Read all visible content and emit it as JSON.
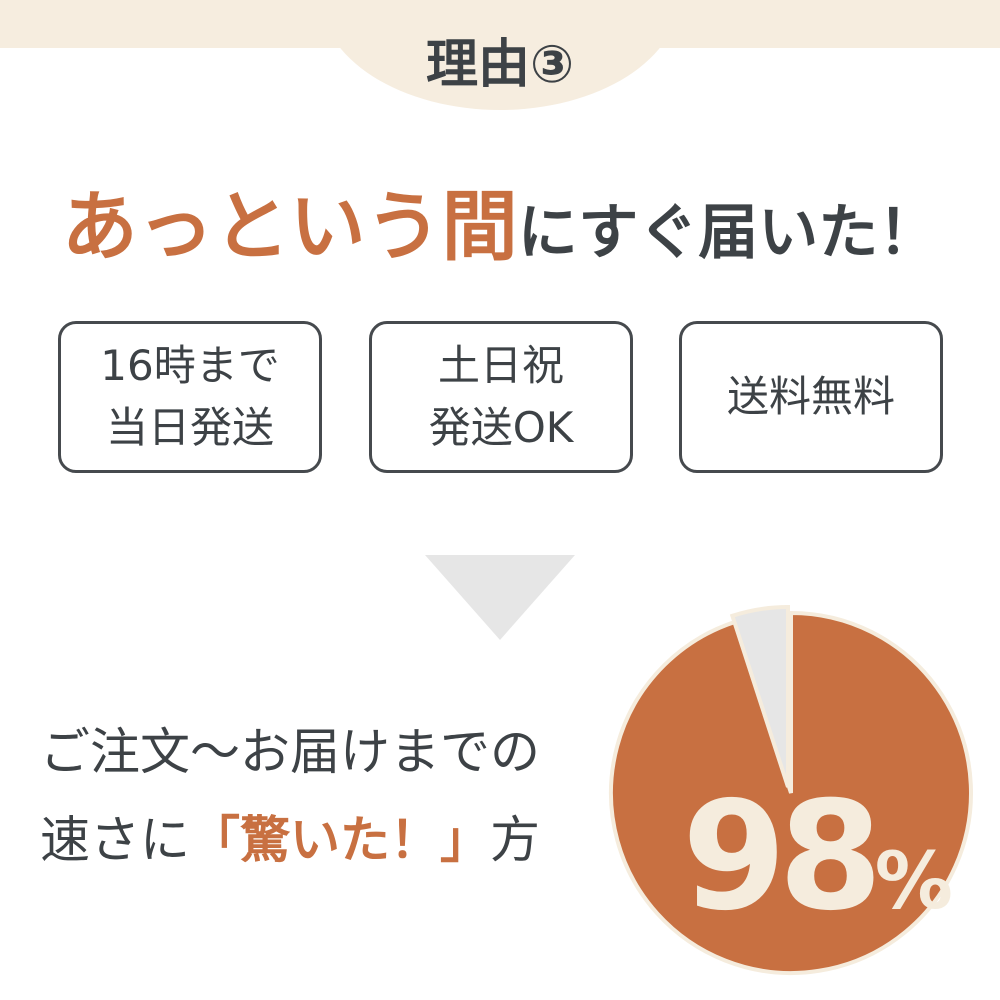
{
  "header": {
    "label": "理由③"
  },
  "headline": {
    "accent": "あっという間",
    "rest": "にすぐ届いた！"
  },
  "features": [
    {
      "line1": "16時まで",
      "line2": "当日発送"
    },
    {
      "line1": "土日祝",
      "line2": "発送OK"
    },
    {
      "line1": "送料無料",
      "line2": ""
    }
  ],
  "summary": {
    "line1": "ご注文～お届けまでの",
    "line2_pre": "速さに",
    "line2_accent": "「驚いた！」",
    "line2_post": "方"
  },
  "pie": {
    "value_percent": 98,
    "number": "98",
    "unit": "%",
    "colors": {
      "main": "#c87041",
      "rest": "#e6e6e6",
      "border": "#f5ecdd"
    }
  },
  "colors": {
    "accent": "#c87041",
    "text": "#3d4246",
    "cream": "#f6eddf",
    "arrow": "#e6e6e6"
  }
}
